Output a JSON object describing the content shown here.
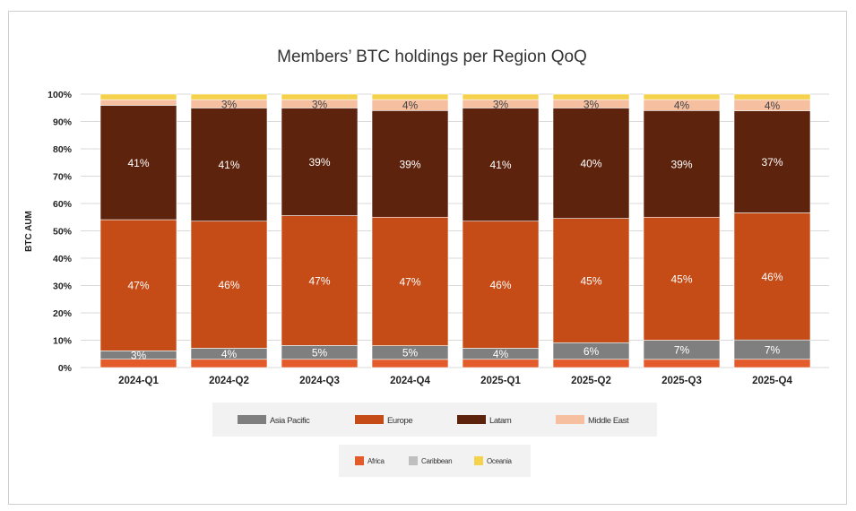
{
  "chart_data": {
    "type": "bar",
    "stacked": true,
    "title": "Members’ BTC holdings per Region QoQ",
    "xlabel": "",
    "ylabel": "BTC AUM",
    "ylim": [
      0,
      100
    ],
    "yticks": [
      "0%",
      "10%",
      "20%",
      "30%",
      "40%",
      "50%",
      "60%",
      "70%",
      "80%",
      "90%",
      "100%"
    ],
    "grid": true,
    "legend_position": "bottom",
    "categories": [
      "2024-Q1",
      "2024-Q2",
      "2024-Q3",
      "2024-Q4",
      "2025-Q1",
      "2025-Q2",
      "2025-Q3",
      "2025-Q4"
    ],
    "series": [
      {
        "name": "Africa",
        "color": "#E35B2B",
        "values": [
          3,
          3,
          3,
          3,
          3,
          3,
          3,
          3
        ],
        "show_labels": false
      },
      {
        "name": "Caribbean",
        "color": "#BFBFBF",
        "values": [
          0,
          0,
          0,
          0,
          0,
          0,
          0,
          0
        ],
        "show_labels": false
      },
      {
        "name": "Asia Pacific",
        "color": "#7F7F7F",
        "values": [
          3,
          4,
          5,
          5,
          4,
          6,
          7,
          7
        ],
        "show_labels": true
      },
      {
        "name": "Europe",
        "color": "#C54B17",
        "values": [
          47,
          46,
          47,
          47,
          46,
          45,
          45,
          46
        ],
        "show_labels": true
      },
      {
        "name": "Latam",
        "color": "#5E230C",
        "values": [
          41,
          41,
          39,
          39,
          41,
          40,
          39,
          37
        ],
        "show_labels": true
      },
      {
        "name": "Middle East",
        "color": "#F5BFA0",
        "values": [
          2,
          3,
          3,
          4,
          3,
          3,
          4,
          4
        ],
        "show_labels": true
      },
      {
        "name": "Oceania",
        "color": "#F5D24B",
        "values": [
          2,
          2,
          2,
          2,
          2,
          2,
          2,
          2
        ],
        "show_labels": false
      }
    ],
    "legend_rows": [
      [
        "Asia Pacific",
        "Europe",
        "Latam",
        "Middle East"
      ],
      [
        "Africa",
        "Caribbean",
        "Oceania"
      ]
    ]
  }
}
